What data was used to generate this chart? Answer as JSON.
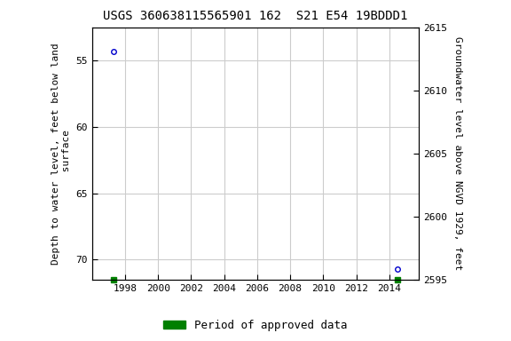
{
  "title": "USGS 360638115565901 162  S21 E54 19BDDD1",
  "ylabel_left": "Depth to water level, feet below land\n surface",
  "ylabel_right": "Groundwater level above NGVD 1929, feet",
  "data_points": [
    {
      "year": 1997.3,
      "depth": 54.3
    },
    {
      "year": 2014.5,
      "depth": 70.7
    }
  ],
  "green_bar_years": [
    1997.3,
    2014.5
  ],
  "xlim": [
    1996.0,
    2015.8
  ],
  "ylim_left_top": 52.5,
  "ylim_left_bottom": 71.5,
  "ylim_right_top": 2615,
  "ylim_right_bottom": 2595,
  "xticks": [
    1998,
    2000,
    2002,
    2004,
    2006,
    2008,
    2010,
    2012,
    2014
  ],
  "yticks_left": [
    55,
    60,
    65,
    70
  ],
  "yticks_right": [
    2595,
    2600,
    2605,
    2610,
    2615
  ],
  "grid_color": "#cccccc",
  "bg_color": "#ffffff",
  "point_color": "#0000cc",
  "green_color": "#008000",
  "title_fontsize": 10,
  "axis_label_fontsize": 8,
  "tick_fontsize": 8,
  "legend_label": "Period of approved data"
}
